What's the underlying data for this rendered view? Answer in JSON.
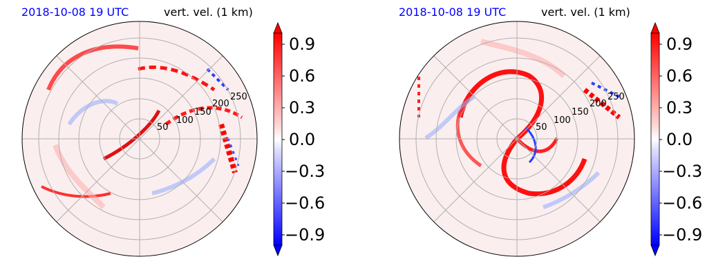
{
  "panels": [
    {
      "date_label": "2018-10-08 19 UTC",
      "field_label": "vert. vel. (1 km)",
      "range_ring_labels": [
        "50",
        "100",
        "150",
        "200",
        "250"
      ],
      "colorbar": {
        "ticks": [
          "0.9",
          "0.6",
          "0.3",
          "0.0",
          "−0.3",
          "−0.6",
          "−0.9"
        ]
      }
    },
    {
      "date_label": "2018-10-08 19 UTC",
      "field_label": "vert. vel. (1 km)",
      "range_ring_labels": [
        "50",
        "100",
        "150",
        "200",
        "250"
      ],
      "colorbar": {
        "ticks": [
          "0.9",
          "0.6",
          "0.3",
          "0.0",
          "−0.3",
          "−0.6",
          "−0.9"
        ]
      }
    }
  ],
  "colors": {
    "date_label": "#0000ff",
    "positive": "#ff0000",
    "negative": "#0000ff",
    "grid": "#b0b0b0"
  },
  "chart_data": [
    {
      "type": "heatmap",
      "projection": "polar",
      "range_rings": [
        50,
        100,
        150,
        200,
        250
      ],
      "radial_spokes_deg": [
        0,
        45,
        90,
        135,
        180,
        225,
        270,
        315
      ],
      "colorbar": {
        "cmap": "bwr",
        "min": -1.0,
        "max": 1.0,
        "ticks": [
          0.9,
          0.6,
          0.3,
          0.0,
          -0.3,
          -0.6,
          -0.9
        ],
        "extend": "both"
      }
    },
    {
      "type": "heatmap",
      "projection": "polar",
      "range_rings": [
        50,
        100,
        150,
        200,
        250
      ],
      "radial_spokes_deg": [
        0,
        45,
        90,
        135,
        180,
        225,
        270,
        315
      ],
      "colorbar": {
        "cmap": "bwr",
        "min": -1.0,
        "max": 1.0,
        "ticks": [
          0.9,
          0.6,
          0.3,
          0.0,
          -0.3,
          -0.6,
          -0.9
        ],
        "extend": "both"
      }
    }
  ]
}
